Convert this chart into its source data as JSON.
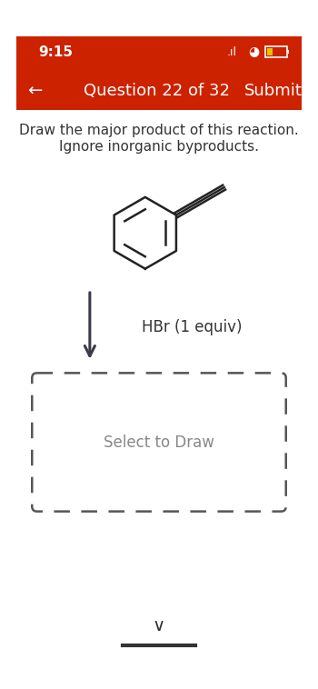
{
  "bg_color": "#ffffff",
  "header_color": "#cc2200",
  "status_bar_text": "9:15",
  "nav_text": "Question 22 of 32",
  "submit_text": "Submit",
  "instruction_line1": "Draw the major product of this reaction.",
  "instruction_line2": "Ignore inorganic byproducts.",
  "reagent_text": "HBr (1 equiv)",
  "draw_box_text": "Select to Draw",
  "text_color": "#333333",
  "header_text_color": "#ffffff",
  "dashed_box_color": "#555555",
  "arrow_color": "#3a3a4a",
  "molecule_color": "#222222",
  "chevron_color": "#333333",
  "bar_color": "#333333"
}
